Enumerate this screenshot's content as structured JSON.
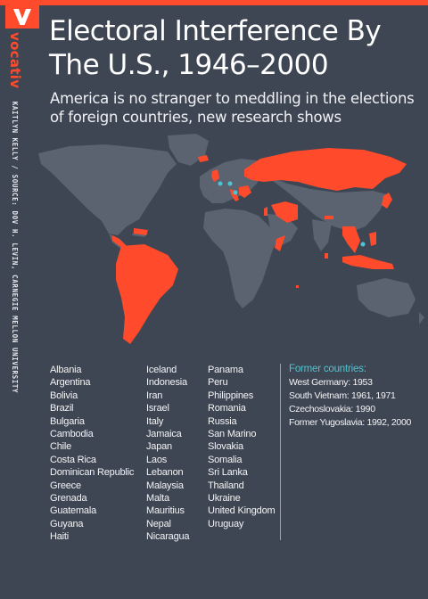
{
  "header": {
    "title_line1": "Electoral Interference By",
    "title_line2": "The U.S., 1946–2000",
    "subtitle_line1": "America is no stranger to meddling in the elections",
    "subtitle_line2": "of foreign countries, new research shows"
  },
  "sidebar": {
    "brand": "vocativ",
    "credit": "KAITLYN KELLY / SOURCE: DOV H. LEVIN, CARNEGIE MELLON UNIVERSITY"
  },
  "colors": {
    "background": "#3f4653",
    "land": "#5c6370",
    "highlight": "#ff4b2b",
    "former_marker": "#4cc4d2",
    "text": "#ffffff"
  },
  "countries": {
    "column1": [
      "Albania",
      "Argentina",
      "Bolivia",
      "Brazil",
      "Bulgaria",
      "Cambodia",
      "Chile",
      "Costa Rica",
      "Dominican Republic",
      "Greece",
      "Grenada",
      "Guatemala",
      "Guyana",
      "Haiti"
    ],
    "column2": [
      "Iceland",
      "Indonesia",
      "Iran",
      "Israel",
      "Italy",
      "Jamaica",
      "Japan",
      "Laos",
      "Lebanon",
      "Malaysia",
      "Malta",
      "Mauritius",
      "Nepal",
      "Nicaragua"
    ],
    "column3": [
      "Panama",
      "Peru",
      "Philippines",
      "Romania",
      "Russia",
      "San Marino",
      "Slovakia",
      "Somalia",
      "Sri Lanka",
      "Thailand",
      "Ukraine",
      "United Kingdom",
      "Uruguay"
    ]
  },
  "former": {
    "heading": "Former countries:",
    "items": [
      "West Germany: 1953",
      "South Vietnam: 1961, 1971",
      "Czechoslovakia: 1990",
      "Former Yugoslavia: 1992, 2000"
    ]
  }
}
